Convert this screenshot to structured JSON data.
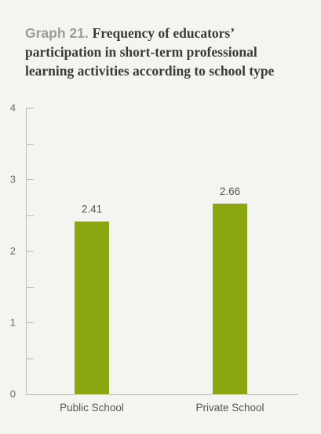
{
  "title": {
    "prefix": "Graph 21.",
    "text": "Frequency of educators’ participation in short-term professional learning activities according to school type"
  },
  "colors": {
    "bar": "#8aa611",
    "axis": "#b9bcb5",
    "background": "#f4f5f1"
  },
  "chart_data": {
    "type": "bar",
    "title": "Graph 21. Frequency of educators’ participation in short-term professional learning activities according to school type",
    "xlabel": "",
    "ylabel": "",
    "categories": [
      "Public School",
      "Private School"
    ],
    "values": [
      2.41,
      2.66
    ],
    "data_labels": [
      "2.41",
      "2.66"
    ],
    "ylim": [
      0,
      4
    ],
    "yticks": [
      0,
      1,
      2,
      3,
      4
    ],
    "minor_ticks": true,
    "grid": false,
    "legend": "none"
  }
}
